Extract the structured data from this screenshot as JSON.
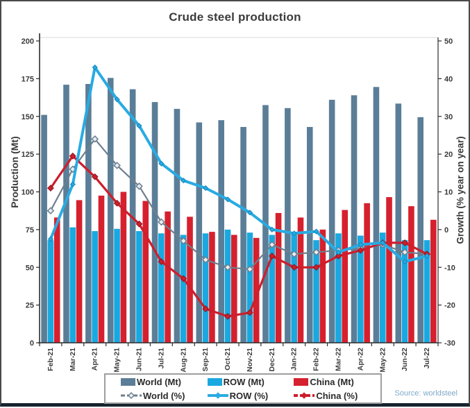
{
  "title": "Crude steel production",
  "source_note": "Source: worldsteel",
  "chart_data": {
    "type": "combo-bar-line",
    "title": "Crude steel production",
    "legend_position": "bottom",
    "grid": "off",
    "categories": [
      "Feb-21",
      "Mar-21",
      "Apr-21",
      "May-21",
      "Jun-21",
      "Jul-21",
      "Aug-21",
      "Sep-21",
      "Oct-21",
      "Nov-21",
      "Dec-21",
      "Jan-22",
      "Feb-22",
      "Mar-22",
      "Apr-22",
      "May-22",
      "Jun-22",
      "Jul-22"
    ],
    "left_axis": {
      "label": "Production (Mt)",
      "min": 0,
      "max": 200,
      "ticks": [
        0,
        25,
        50,
        75,
        100,
        125,
        150,
        175,
        200
      ]
    },
    "right_axis": {
      "label": "Growth (% year on year)",
      "min": -30,
      "max": 50,
      "ticks": [
        -30,
        -20,
        -10,
        0,
        10,
        20,
        30,
        40,
        50
      ]
    },
    "bar_series": [
      {
        "name": "World (Mt)",
        "color": "#5b7e98",
        "values": [
          151,
          171,
          171.5,
          175.5,
          168,
          159.5,
          155,
          146,
          147.5,
          143,
          157.5,
          155.5,
          143,
          161,
          164,
          169.5,
          158.5,
          149.5
        ]
      },
      {
        "name": "ROW (Mt)",
        "color": "#1aa8e0",
        "values": [
          68,
          76.5,
          74,
          75.5,
          74,
          72.5,
          71.5,
          72.5,
          75,
          73,
          71.5,
          72.5,
          68,
          72.5,
          71,
          73,
          68,
          68
        ]
      },
      {
        "name": "China (Mt)",
        "color": "#d6202e",
        "values": [
          83,
          94.5,
          97.5,
          100,
          94,
          87,
          83.5,
          73.5,
          71.5,
          69.5,
          86,
          83,
          75,
          88,
          92.5,
          96.5,
          90.5,
          81.5
        ]
      }
    ],
    "line_series": [
      {
        "name": "World (%)",
        "color": "#6d7f8e",
        "marker": "diamond-open",
        "dash_legend": true,
        "width": 2.2,
        "values": [
          5,
          16,
          24,
          17,
          11.5,
          2,
          -3,
          -8,
          -10,
          -10.5,
          -4,
          -6.5,
          -6,
          -5.5,
          -5,
          -4,
          -6,
          -6.5
        ]
      },
      {
        "name": "China (%)",
        "color": "#cc1f2d",
        "marker": "diamond",
        "dash_legend": true,
        "width": 3.2,
        "values": [
          11,
          19.5,
          14,
          7,
          1.5,
          -8.5,
          -13,
          -21,
          -23,
          -22,
          -7,
          -10,
          -10,
          -7,
          -5.5,
          -3.5,
          -3.5,
          -6.5
        ]
      },
      {
        "name": "ROW (%)",
        "color": "#29abe2",
        "marker": "diamond",
        "dash_legend": false,
        "width": 4,
        "values": [
          -2.5,
          12,
          43,
          34.5,
          27.5,
          17.5,
          13,
          11,
          8,
          4.5,
          0,
          -1,
          -0.5,
          -6,
          -4,
          -3.5,
          -8.5,
          -7
        ]
      }
    ],
    "legend_order_row1": [
      "World (Mt)",
      "ROW (Mt)",
      "China (Mt)"
    ],
    "legend_order_row2": [
      "World (%)",
      "ROW (%)",
      "China (%)"
    ]
  }
}
